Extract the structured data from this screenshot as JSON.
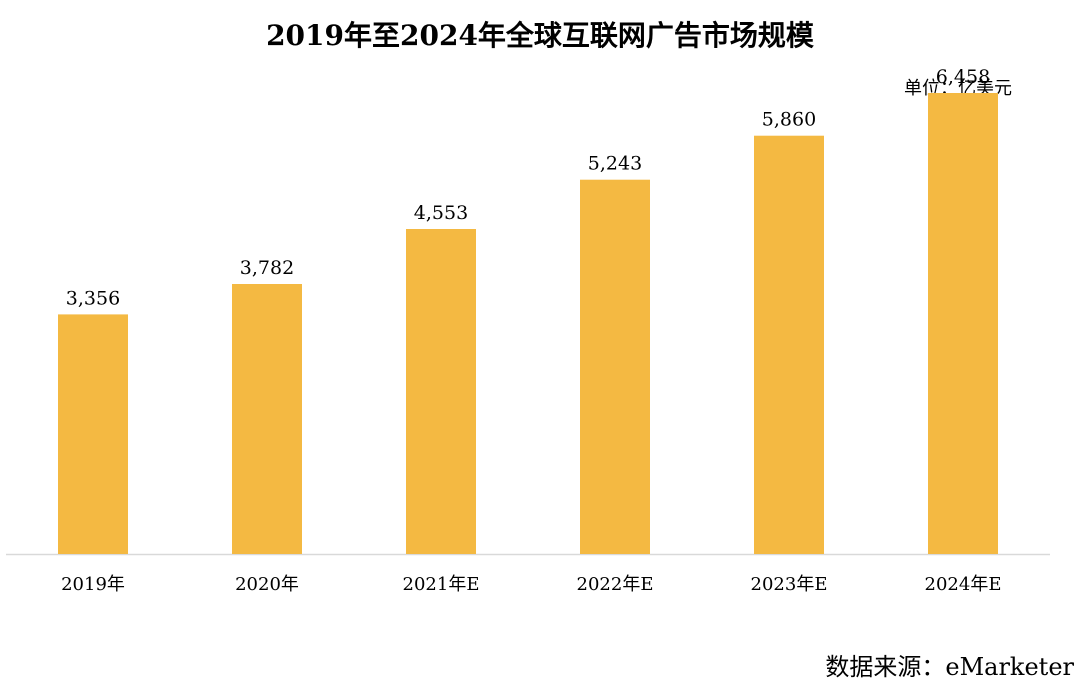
{
  "chart_data": {
    "type": "bar",
    "title": "2019年至2024年全球互联网广告市场规模",
    "unit": "单位：亿美元",
    "source": "数据来源：eMarketer",
    "categories": [
      "2019年",
      "2020年",
      "2021年E",
      "2022年E",
      "2023年E",
      "2024年E"
    ],
    "values": [
      3356,
      3782,
      4553,
      5243,
      5860,
      6458
    ],
    "value_labels": [
      "3,356",
      "3,782",
      "4,553",
      "5,243",
      "5,860",
      "6,458"
    ],
    "xlabel": "",
    "ylabel": "",
    "ylim": [
      0,
      7200
    ],
    "grid": false,
    "legend": "none",
    "bar_color": "#F4B942",
    "axis_color": "#D9D9D9"
  }
}
